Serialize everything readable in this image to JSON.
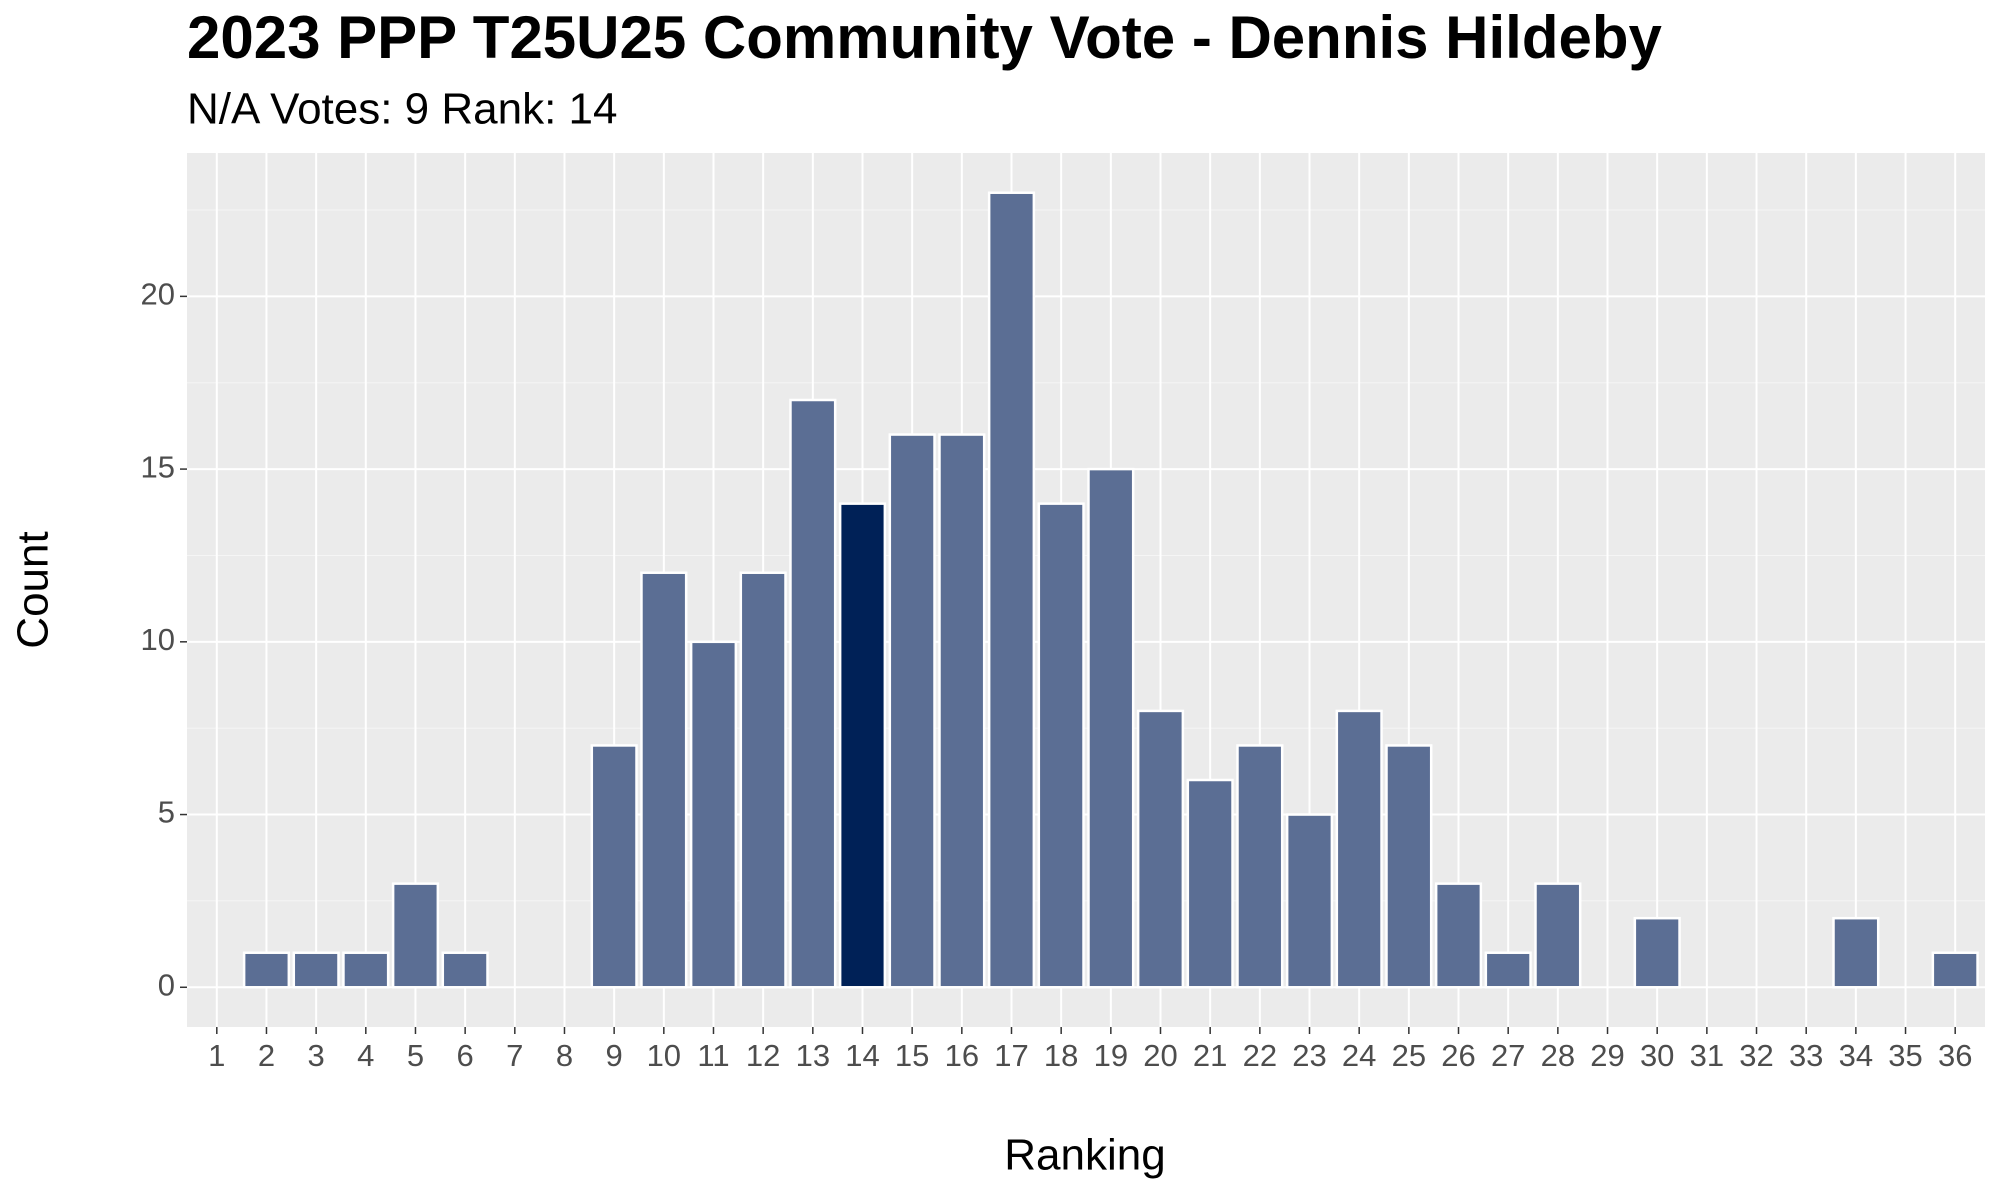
{
  "chart_data": {
    "type": "bar",
    "title": "2023 PPP T25U25 Community Vote - Dennis Hildeby",
    "subtitle": "N/A Votes: 9  Rank: 14",
    "x_label": "Ranking",
    "y_label": "Count",
    "x": [
      1,
      2,
      3,
      4,
      5,
      6,
      7,
      8,
      9,
      10,
      11,
      12,
      13,
      14,
      15,
      16,
      17,
      18,
      19,
      20,
      21,
      22,
      23,
      24,
      25,
      26,
      27,
      28,
      29,
      30,
      31,
      32,
      33,
      34,
      35,
      36
    ],
    "values": [
      0,
      1,
      1,
      1,
      3,
      1,
      0,
      0,
      7,
      12,
      10,
      12,
      17,
      14,
      16,
      16,
      23,
      14,
      15,
      8,
      6,
      7,
      5,
      8,
      7,
      3,
      1,
      3,
      0,
      2,
      0,
      0,
      0,
      2,
      0,
      1
    ],
    "colors": [
      "#5b6e94",
      "#5b6e94",
      "#5b6e94",
      "#5b6e94",
      "#5b6e94",
      "#5b6e94",
      "#5b6e94",
      "#5b6e94",
      "#5b6e94",
      "#5b6e94",
      "#5b6e94",
      "#5b6e94",
      "#5b6e94",
      "#002157",
      "#5b6e94",
      "#5b6e94",
      "#5b6e94",
      "#5b6e94",
      "#5b6e94",
      "#5b6e94",
      "#5b6e94",
      "#5b6e94",
      "#5b6e94",
      "#5b6e94",
      "#5b6e94",
      "#5b6e94",
      "#5b6e94",
      "#5b6e94",
      "#5b6e94",
      "#5b6e94",
      "#5b6e94",
      "#5b6e94",
      "#5b6e94",
      "#5b6e94",
      "#5b6e94",
      "#5b6e94"
    ],
    "xlim": [
      0.4,
      36.6
    ],
    "ylim": [
      -1.15,
      24.15
    ],
    "yticks": [
      0,
      5,
      10,
      15,
      20
    ],
    "grid": true
  }
}
